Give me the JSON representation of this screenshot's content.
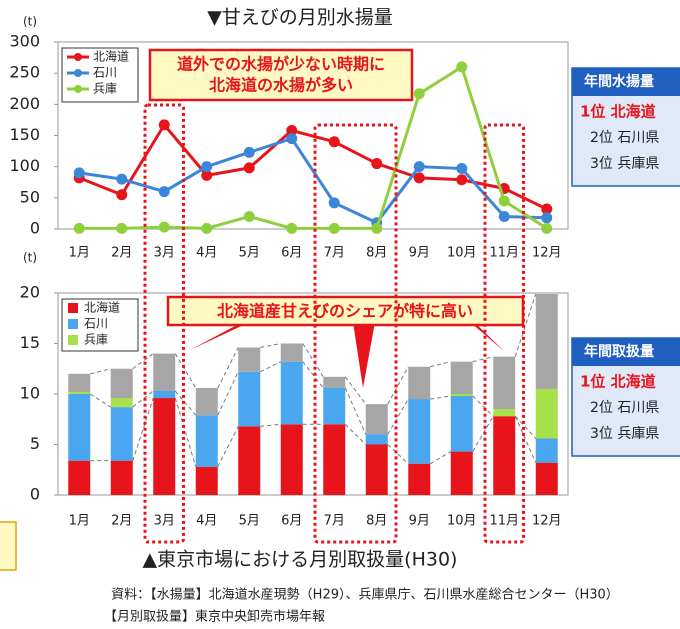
{
  "chart_data": [
    {
      "type": "line",
      "title": "▼甘えびの月別水揚量",
      "y_label": "(t)",
      "categories": [
        "1月",
        "2月",
        "3月",
        "4月",
        "5月",
        "6月",
        "7月",
        "8月",
        "9月",
        "10月",
        "11月",
        "12月"
      ],
      "series": [
        {
          "name": "北海道",
          "color": "#e8141b",
          "values": [
            82,
            55,
            167,
            86,
            98,
            158,
            140,
            105,
            82,
            79,
            65,
            32
          ]
        },
        {
          "name": "石川",
          "color": "#3b86d9",
          "values": [
            90,
            80,
            60,
            100,
            123,
            145,
            42,
            10,
            100,
            97,
            20,
            18
          ]
        },
        {
          "name": "兵庫",
          "color": "#8fce3c",
          "values": [
            1,
            1,
            3,
            1,
            20,
            1,
            1,
            1,
            217,
            260,
            45,
            1
          ]
        }
      ],
      "ylim": [
        0,
        300
      ],
      "yticks": [
        0,
        50,
        100,
        150,
        200,
        250,
        300
      ],
      "grid": false,
      "legend": "top-left",
      "annotation": [
        "道外での水揚が少ない時期に",
        "北海道の水揚が多い"
      ],
      "side_box": {
        "title": "年間水揚量",
        "items": [
          "1位 北海道",
          "2位 石川県",
          "3位 兵庫県"
        ]
      }
    },
    {
      "type": "stacked-bar",
      "caption": "▲東京市場における月別取扱量(H30)",
      "y_label": "(t)",
      "categories": [
        "1月",
        "2月",
        "3月",
        "4月",
        "5月",
        "6月",
        "7月",
        "8月",
        "9月",
        "10月",
        "11月",
        "12月"
      ],
      "series": [
        {
          "name": "北海道",
          "color": "#e8141b",
          "values": [
            3.4,
            3.4,
            9.6,
            2.8,
            6.8,
            7.0,
            7.0,
            5.0,
            3.1,
            4.3,
            7.8,
            3.2
          ]
        },
        {
          "name": "石川",
          "color": "#4ba6f0",
          "values": [
            6.6,
            5.3,
            0.7,
            5.1,
            5.4,
            6.2,
            3.6,
            1.0,
            6.4,
            5.5,
            0,
            2.4
          ]
        },
        {
          "name": "兵庫",
          "color": "#a6e04a",
          "values": [
            0.2,
            0.9,
            0,
            0,
            0,
            0,
            0,
            0,
            0,
            0.2,
            0.7,
            4.9
          ]
        },
        {
          "color": "#a6a6a6",
          "values": [
            1.8,
            2.9,
            3.7,
            2.7,
            2.4,
            1.8,
            1.1,
            3.0,
            3.2,
            3.2,
            5.2,
            9.4
          ]
        }
      ],
      "ylim": [
        0,
        20
      ],
      "yticks": [
        0,
        5,
        10,
        15,
        20
      ],
      "grid": false,
      "legend": "top-left",
      "annotation": [
        "北海道産甘えびのシェアが特に高い"
      ],
      "side_box": {
        "title": "年間取扱量",
        "items": [
          "1位 北海道",
          "2位 石川県",
          "3位 兵庫県"
        ]
      }
    }
  ],
  "source_notes": [
    "資料：【水揚量】北海道水産現勢（H29）、兵庫県庁、石川県水産総合センター（H30）",
    "【月別取扱量】東京中央卸売市場年報"
  ]
}
